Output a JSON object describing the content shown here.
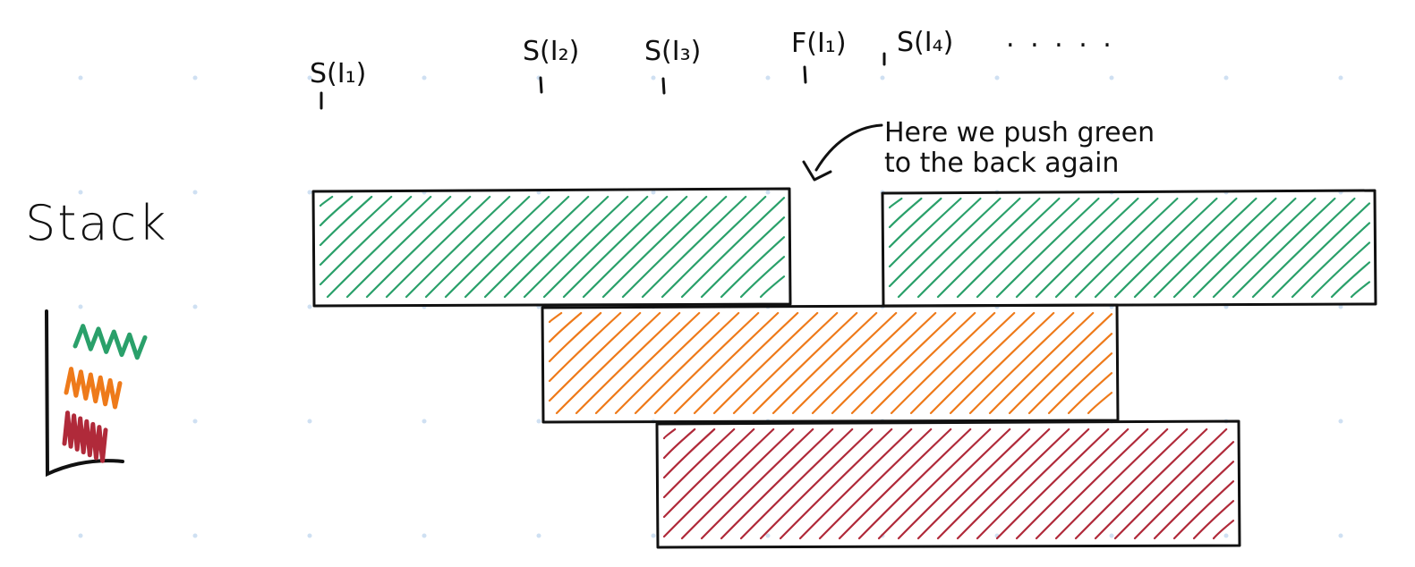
{
  "title": "Stack",
  "ticks": [
    {
      "label": "S(I₁)"
    },
    {
      "label": "S(I₂)"
    },
    {
      "label": "S(I₃)"
    },
    {
      "label": "F(I₁)"
    },
    {
      "label": "S(I₄)"
    }
  ],
  "ellipsis": ". . . . .",
  "annotation": {
    "line1": "Here we push green",
    "line2": "to the back again"
  },
  "colors": {
    "green": "#2aa06a",
    "orange": "#ee7a1a",
    "red": "#b02a3a",
    "ink": "#111111",
    "grid_dot": "#cfe0f2"
  },
  "intervals": [
    {
      "name": "green-interval-1",
      "color": "green"
    },
    {
      "name": "green-interval-2",
      "color": "green"
    },
    {
      "name": "orange-interval",
      "color": "orange"
    },
    {
      "name": "red-interval",
      "color": "red"
    }
  ],
  "stack_legend": [
    "green",
    "orange",
    "red"
  ]
}
